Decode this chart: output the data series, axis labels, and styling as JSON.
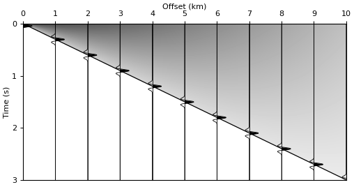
{
  "title": "Offset (km)",
  "ylabel": "Time (s)",
  "xlim": [
    0,
    10
  ],
  "ylim": [
    3,
    0
  ],
  "x_ticks": [
    0,
    1,
    2,
    3,
    4,
    5,
    6,
    7,
    8,
    9,
    10
  ],
  "y_ticks": [
    0,
    1,
    2,
    3
  ],
  "offsets": [
    0,
    1,
    2,
    3,
    4,
    5,
    6,
    7,
    8,
    9,
    10
  ],
  "t_total": 3.0,
  "dt": 0.002,
  "dominant_freq": 7.0,
  "amplitude_scale": 0.28,
  "background_color": "#ffffff",
  "line_color": "#000000",
  "slope": 0.3,
  "fig_width": 5.08,
  "fig_height": 2.68,
  "dpi": 100
}
